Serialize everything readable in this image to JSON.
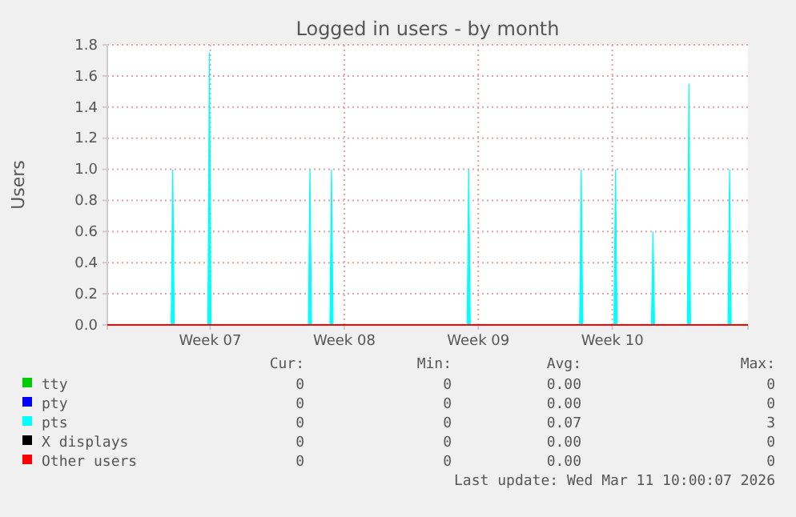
{
  "chart_data": {
    "type": "area",
    "title": "Logged in users - by month",
    "ylabel": "Users",
    "xlim": [
      "2026-02-05T23:00",
      "2026-03-11T10:00"
    ],
    "xticks": [
      {
        "value": "2026-02-11T08:00",
        "label": "Week 07"
      },
      {
        "value": "2026-02-18T08:00",
        "label": "Week 08"
      },
      {
        "value": "2026-02-25T08:00",
        "label": "Week 09"
      },
      {
        "value": "2026-03-04T08:00",
        "label": "Week 10"
      }
    ],
    "ylim": [
      0,
      1.8
    ],
    "yticks": [
      {
        "value": 0,
        "label": "0.0"
      },
      {
        "value": 0.2,
        "label": "0.2"
      },
      {
        "value": 0.4,
        "label": "0.4"
      },
      {
        "value": 0.6,
        "label": "0.6"
      },
      {
        "value": 0.8,
        "label": "0.8"
      },
      {
        "value": 1,
        "label": "1.0"
      },
      {
        "value": 1.2,
        "label": "1.2"
      },
      {
        "value": 1.4,
        "label": "1.4"
      },
      {
        "value": 1.6,
        "label": "1.6"
      },
      {
        "value": 1.8,
        "label": "1.8"
      }
    ],
    "grid": true,
    "legend": "bottom",
    "series": [
      {
        "name": "tty",
        "color": "#00cc00"
      },
      {
        "name": "pty",
        "color": "#0000ff"
      },
      {
        "name": "pts",
        "color": "#00ffff",
        "x": [
          "2026-02-05T23:00",
          "2026-02-09T07:00",
          "2026-02-09T09:00",
          "2026-02-09T11:00",
          "2026-02-11T05:00",
          "2026-02-11T07:00",
          "2026-02-11T09:00",
          "2026-02-16T11:00",
          "2026-02-16T13:00",
          "2026-02-16T15:00",
          "2026-02-17T14:00",
          "2026-02-17T16:00",
          "2026-02-17T18:00",
          "2026-02-24T18:00",
          "2026-02-24T20:00",
          "2026-02-24T22:00",
          "2026-03-02T15:00",
          "2026-03-02T17:00",
          "2026-03-02T19:00",
          "2026-03-04T10:00",
          "2026-03-04T12:00",
          "2026-03-04T14:00",
          "2026-03-06T09:00",
          "2026-03-06T11:00",
          "2026-03-06T13:00",
          "2026-03-08T06:00",
          "2026-03-08T08:00",
          "2026-03-08T10:00",
          "2026-03-10T09:00",
          "2026-03-10T11:00",
          "2026-03-10T13:00",
          "2026-03-11T10:00"
        ],
        "values": [
          0,
          0,
          1.0,
          0,
          0,
          1.75,
          0,
          0,
          1.0,
          0,
          0,
          1.0,
          0,
          0,
          1.0,
          0,
          0,
          1.0,
          0,
          0,
          1.0,
          0,
          0,
          0.6,
          0,
          0,
          1.55,
          0,
          0,
          1.0,
          0,
          0
        ]
      },
      {
        "name": "X displays",
        "color": "#000000"
      },
      {
        "name": "Other users",
        "type": "line",
        "color": "#ff0000",
        "x": [
          "2026-02-05T23:00",
          "2026-03-11T10:00"
        ],
        "values": [
          0,
          0
        ]
      }
    ],
    "annotations": [
      "Cur:",
      "Min:",
      "Avg:",
      "Max:",
      "0",
      "0",
      "0.00",
      "0",
      "0",
      "0",
      "0.00",
      "0",
      "0",
      "0",
      "0.07",
      "3",
      "0",
      "0",
      "0.00",
      "0",
      "0",
      "0",
      "0.00",
      "0",
      "Last update: Wed Mar 11 10:00:07 2026"
    ]
  }
}
